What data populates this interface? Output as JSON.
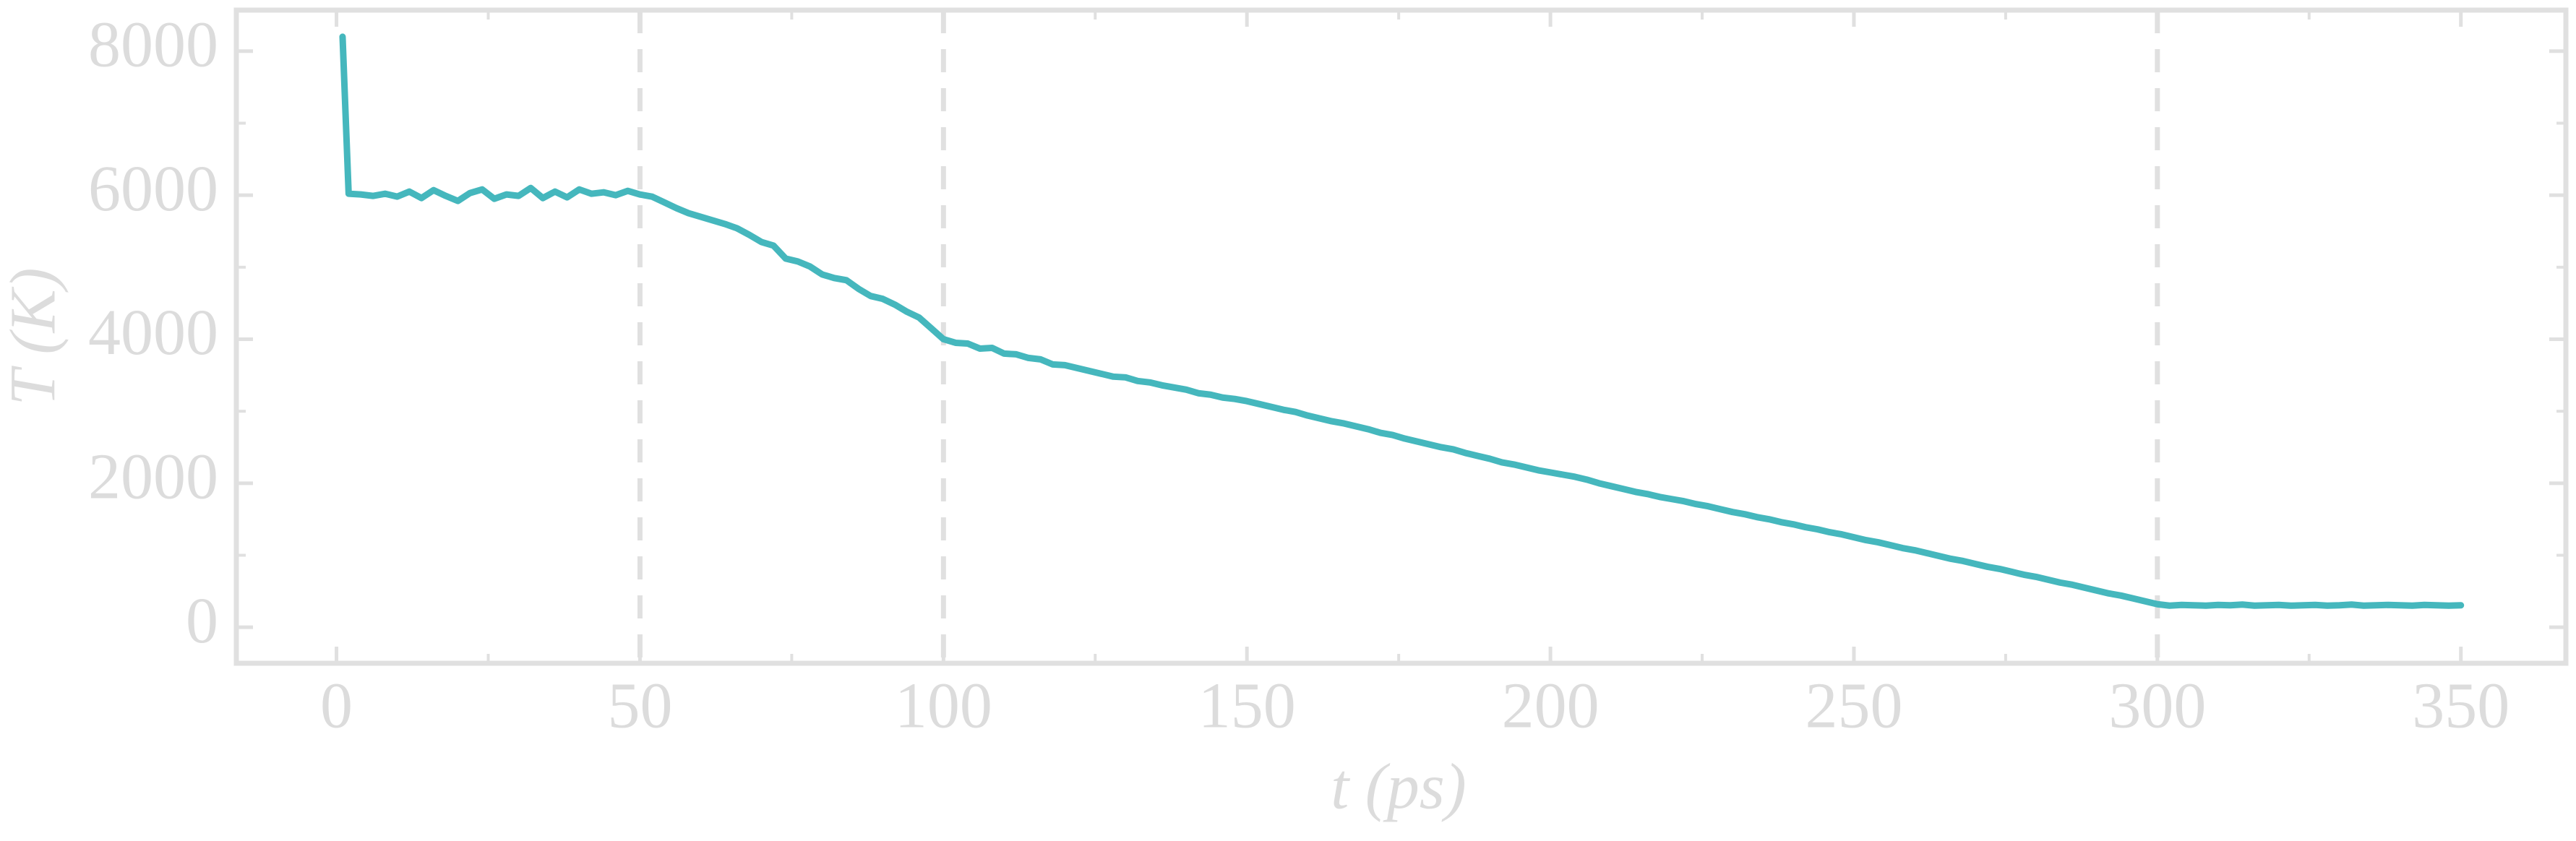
{
  "chart_data": {
    "type": "line",
    "xlabel": "t (ps)",
    "ylabel": "T (K)",
    "xlim": [
      -16.5,
      367.3
    ],
    "ylim": [
      -500,
      8570
    ],
    "xticks": [
      0,
      50,
      100,
      150,
      200,
      250,
      300,
      350
    ],
    "yticks": [
      0,
      2000,
      4000,
      6000,
      8000
    ],
    "xminorticks": [
      25,
      75,
      125,
      175,
      225,
      275,
      325
    ],
    "yminorticks": [
      1000,
      3000,
      5000,
      7000
    ],
    "vlines": [
      50,
      100,
      300
    ],
    "vline_color": "#e0e0e0",
    "axis_color": "#e0e0e0",
    "grid": false,
    "x": [
      1,
      2,
      4,
      6,
      8,
      10,
      12,
      14,
      16,
      18,
      20,
      22,
      24,
      26,
      28,
      30,
      32,
      34,
      36,
      38,
      40,
      42,
      44,
      46,
      48,
      50,
      52,
      54,
      56,
      58,
      60,
      62,
      64,
      66,
      68,
      70,
      72,
      74,
      76,
      78,
      80,
      82,
      84,
      86,
      88,
      90,
      92,
      94,
      96,
      98,
      100,
      102,
      104,
      106,
      108,
      110,
      112,
      114,
      116,
      118,
      120,
      122,
      124,
      126,
      128,
      130,
      132,
      134,
      136,
      138,
      140,
      142,
      144,
      146,
      148,
      150,
      152,
      154,
      156,
      158,
      160,
      162,
      164,
      166,
      168,
      170,
      172,
      174,
      176,
      178,
      180,
      182,
      184,
      186,
      188,
      190,
      192,
      194,
      196,
      198,
      200,
      202,
      204,
      206,
      208,
      210,
      212,
      214,
      216,
      218,
      220,
      222,
      224,
      226,
      228,
      230,
      232,
      234,
      236,
      238,
      240,
      242,
      244,
      246,
      248,
      250,
      252,
      254,
      256,
      258,
      260,
      262,
      264,
      266,
      268,
      270,
      272,
      274,
      276,
      278,
      280,
      282,
      284,
      286,
      288,
      290,
      292,
      294,
      296,
      298,
      300,
      302,
      304,
      306,
      308,
      310,
      312,
      314,
      316,
      318,
      320,
      322,
      324,
      326,
      328,
      330,
      332,
      334,
      336,
      338,
      340,
      342,
      344,
      346,
      348,
      350
    ],
    "series": [
      {
        "color": "#45b7bd",
        "values": [
          8200,
          6020,
          6010,
          5990,
          6020,
          5980,
          6050,
          5960,
          6070,
          5990,
          5920,
          6030,
          6080,
          5950,
          6010,
          5990,
          6100,
          5960,
          6050,
          5970,
          6080,
          6020,
          6040,
          6000,
          6060,
          6010,
          5980,
          5900,
          5820,
          5750,
          5700,
          5650,
          5600,
          5540,
          5450,
          5350,
          5300,
          5120,
          5080,
          5010,
          4900,
          4850,
          4820,
          4700,
          4600,
          4560,
          4480,
          4380,
          4300,
          4150,
          4000,
          3950,
          3940,
          3870,
          3880,
          3800,
          3790,
          3740,
          3720,
          3650,
          3640,
          3600,
          3560,
          3520,
          3480,
          3470,
          3420,
          3400,
          3360,
          3330,
          3300,
          3250,
          3230,
          3190,
          3170,
          3140,
          3100,
          3060,
          3020,
          2990,
          2940,
          2900,
          2860,
          2830,
          2790,
          2750,
          2700,
          2670,
          2620,
          2580,
          2540,
          2500,
          2470,
          2420,
          2380,
          2340,
          2290,
          2260,
          2220,
          2180,
          2150,
          2120,
          2090,
          2050,
          2000,
          1960,
          1920,
          1880,
          1850,
          1810,
          1780,
          1750,
          1710,
          1680,
          1640,
          1600,
          1570,
          1530,
          1500,
          1460,
          1430,
          1390,
          1360,
          1320,
          1290,
          1250,
          1210,
          1180,
          1140,
          1100,
          1070,
          1030,
          990,
          950,
          920,
          880,
          840,
          810,
          770,
          730,
          700,
          660,
          620,
          590,
          550,
          510,
          470,
          440,
          400,
          360,
          320,
          300,
          310,
          305,
          300,
          310,
          305,
          315,
          300,
          305,
          310,
          300,
          305,
          310,
          300,
          305,
          315,
          300,
          305,
          310,
          305,
          300,
          310,
          305,
          300,
          305
        ]
      }
    ]
  }
}
